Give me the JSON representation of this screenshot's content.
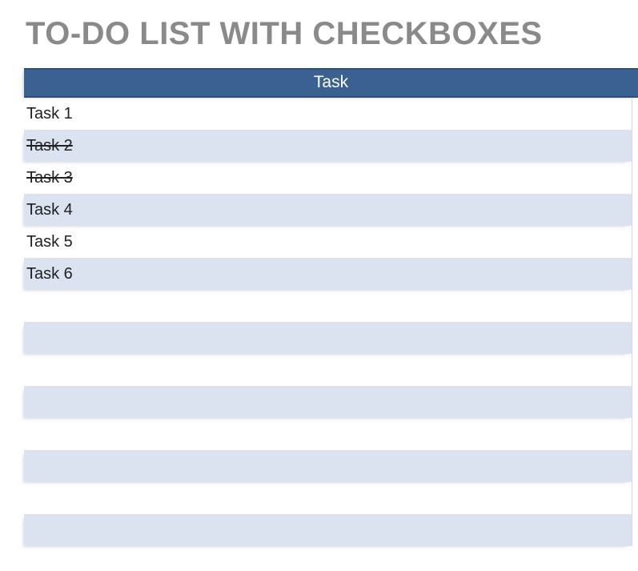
{
  "page": {
    "title": "TO-DO LIST WITH CHECKBOXES"
  },
  "table": {
    "header": {
      "label": "Task"
    },
    "rows": [
      {
        "text": "Task 1",
        "completed": false,
        "shaded": false
      },
      {
        "text": "Task 2",
        "completed": true,
        "shaded": true
      },
      {
        "text": "Task 3",
        "completed": true,
        "shaded": false
      },
      {
        "text": "Task 4",
        "completed": false,
        "shaded": true
      },
      {
        "text": "Task 5",
        "completed": false,
        "shaded": false
      },
      {
        "text": "Task 6",
        "completed": false,
        "shaded": true
      },
      {
        "text": "",
        "completed": false,
        "shaded": false
      },
      {
        "text": "",
        "completed": false,
        "shaded": true
      },
      {
        "text": "",
        "completed": false,
        "shaded": false
      },
      {
        "text": "",
        "completed": false,
        "shaded": true
      },
      {
        "text": "",
        "completed": false,
        "shaded": false
      },
      {
        "text": "",
        "completed": false,
        "shaded": true
      },
      {
        "text": "",
        "completed": false,
        "shaded": false
      },
      {
        "text": "",
        "completed": false,
        "shaded": true
      }
    ]
  },
  "colors": {
    "title_text": "#8a8a8a",
    "header_bg": "#3a6191",
    "header_border": "#2e4f7a",
    "header_text": "#ffffff",
    "row_shaded_bg": "#dbe2f0",
    "row_text": "#212121",
    "gridline": "#d9d9d9",
    "page_bg": "#ffffff"
  }
}
